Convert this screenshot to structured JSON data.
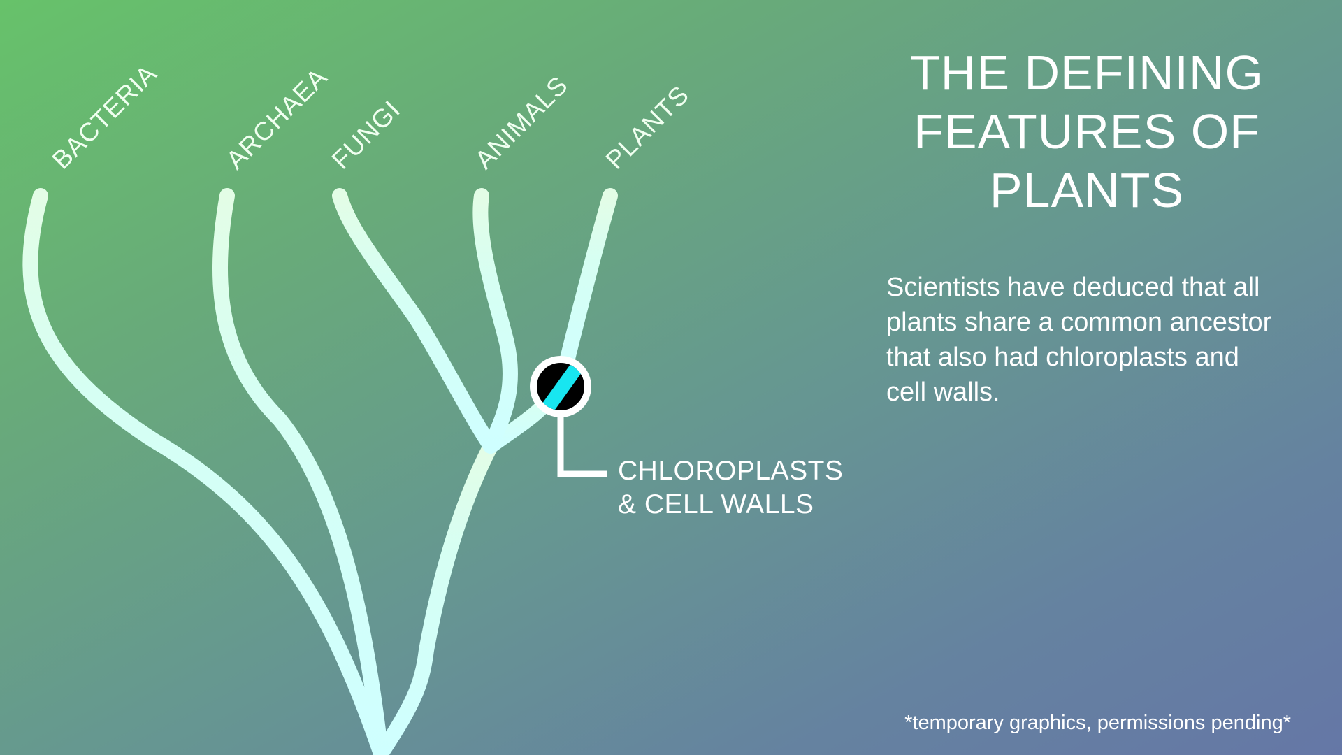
{
  "title_lines": [
    "THE DEFINING",
    "FEATURES OF",
    "PLANTS"
  ],
  "description_lines": [
    "Scientists have deduced that all",
    "plants share a common ancestor",
    "that also had chloroplasts and",
    "cell walls."
  ],
  "branches": [
    {
      "label": "BACTERIA"
    },
    {
      "label": "ARCHAEA"
    },
    {
      "label": "FUNGI"
    },
    {
      "label": "ANIMALS"
    },
    {
      "label": "PLANTS"
    }
  ],
  "callout_lines": [
    "CHLOROPLASTS",
    "& CELL WALLS"
  ],
  "footnote": "*temporary graphics, permissions pending*",
  "colors": {
    "branch": "#cfffff",
    "branch_pale": "#e3fde6",
    "trait_marker_fill": "#000000",
    "trait_marker_stripe": "#18e6f0",
    "text": "#ffffff"
  }
}
